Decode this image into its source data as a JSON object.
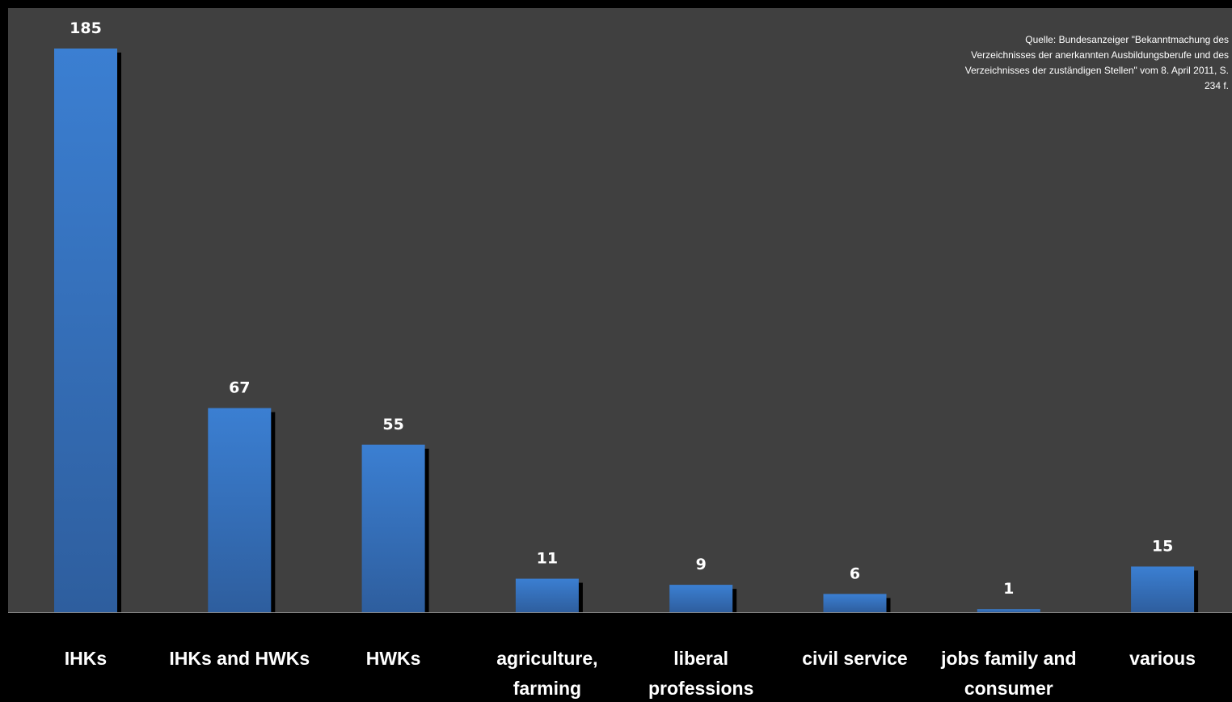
{
  "chart": {
    "title": "",
    "source_note": "Quelle: Bundesanzeiger \"Bekanntmachung des Verzeichnisses der anerkannten Ausbildungsberufe und des Verzeichnisses der zuständigen Stellen\" vom 8. April 2011, S. 234 f."
  },
  "colors": {
    "background": "#000000",
    "plot_area": "#404040",
    "bar": "#3a76c4",
    "bar_shadow": "#000000",
    "text": "#ffffff"
  },
  "chart_data": {
    "type": "bar",
    "categories": [
      "IHKs",
      "IHKs and HWKs",
      "HWKs",
      "agriculture, farming",
      "liberal professions",
      "civil service",
      "jobs family and consumer science",
      "various"
    ],
    "values": [
      185,
      67,
      55,
      11,
      9,
      6,
      1,
      15
    ],
    "title": "",
    "xlabel": "",
    "ylabel": "",
    "ylim": [
      0,
      195
    ],
    "grid": false,
    "legend": "none",
    "data_labels": true
  }
}
